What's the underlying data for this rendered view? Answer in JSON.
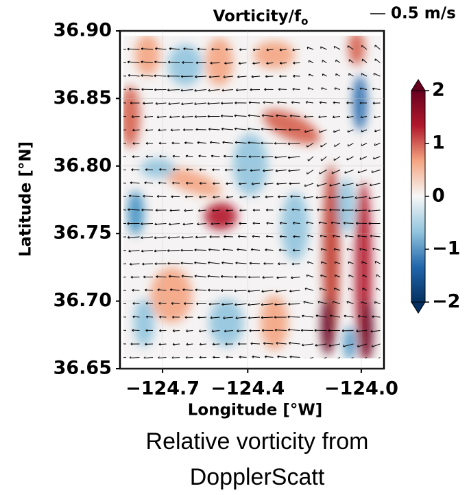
{
  "chart_data": {
    "type": "vorticity-map",
    "title": "Vorticity/f",
    "title_subscript": "o",
    "reference_arrow_label": "0.5 m/s",
    "xlabel": "Longitude [°W]",
    "ylabel": "Latitude [°N]",
    "xlim": [
      -124.85,
      -123.92
    ],
    "xticks": [
      {
        "value": -124.7,
        "label": "−124.7"
      },
      {
        "value": -124.4,
        "label": "−124.4"
      },
      {
        "value": -124.0,
        "label": "−124.0"
      }
    ],
    "ylim": [
      36.65,
      36.9
    ],
    "yticks": [
      {
        "value": 36.65,
        "label": "36.65"
      },
      {
        "value": 36.7,
        "label": "36.70"
      },
      {
        "value": 36.75,
        "label": "36.75"
      },
      {
        "value": 36.8,
        "label": "36.80"
      },
      {
        "value": 36.85,
        "label": "36.85"
      },
      {
        "value": 36.9,
        "label": "36.90"
      }
    ],
    "colorbar": {
      "lim": [
        -2,
        2
      ],
      "ticks": [
        {
          "value": -2,
          "label": "−2"
        },
        {
          "value": -1,
          "label": "−1"
        },
        0,
        1,
        2
      ],
      "colors": [
        "#053061",
        "#2166ac",
        "#92c5de",
        "#f7f7f7",
        "#f4a582",
        "#b2182b",
        "#67001f"
      ]
    },
    "caption": [
      "Relative vorticity from",
      "DopplerScatt"
    ]
  }
}
